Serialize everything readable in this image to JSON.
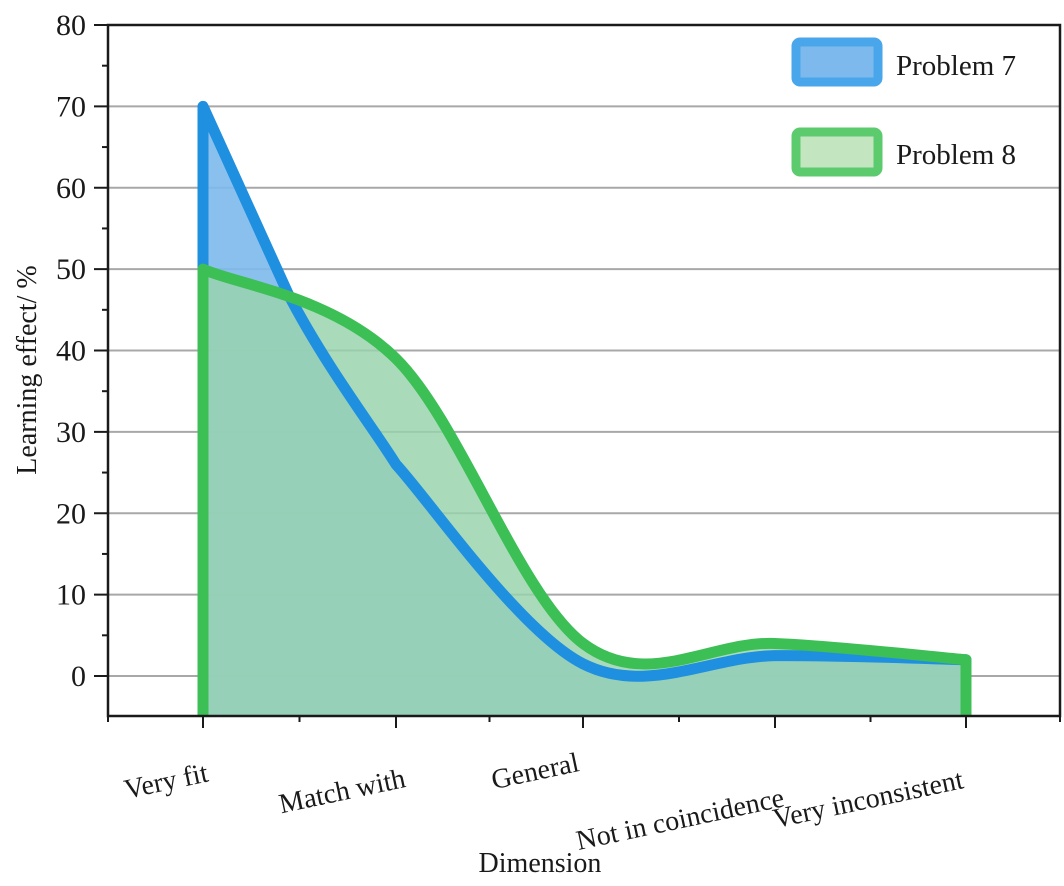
{
  "chart_data": {
    "type": "area",
    "title": "",
    "xlabel": "Dimension",
    "ylabel": "Learning effect/ %",
    "categories": [
      "Very fit",
      "Match with",
      "General",
      "Not in coincidence",
      "Very inconsistent"
    ],
    "series": [
      {
        "name": "Problem 7",
        "values": [
          70,
          26,
          1.5,
          2.5,
          2
        ],
        "line_color": "#1f8fe0",
        "fill_color": "#7db9ec"
      },
      {
        "name": "Problem 8",
        "values": [
          50,
          39,
          4,
          4,
          2
        ],
        "line_color": "#3cbf55",
        "fill_color": "#b7e0b0"
      }
    ],
    "ylim": [
      -5,
      80
    ],
    "yticks": [
      0,
      10,
      20,
      30,
      40,
      50,
      60,
      70,
      80
    ],
    "grid": true,
    "legend_position": "top-right",
    "smooth": true
  },
  "legend": {
    "items": [
      {
        "label": "Problem 7"
      },
      {
        "label": "Problem 8"
      }
    ]
  }
}
